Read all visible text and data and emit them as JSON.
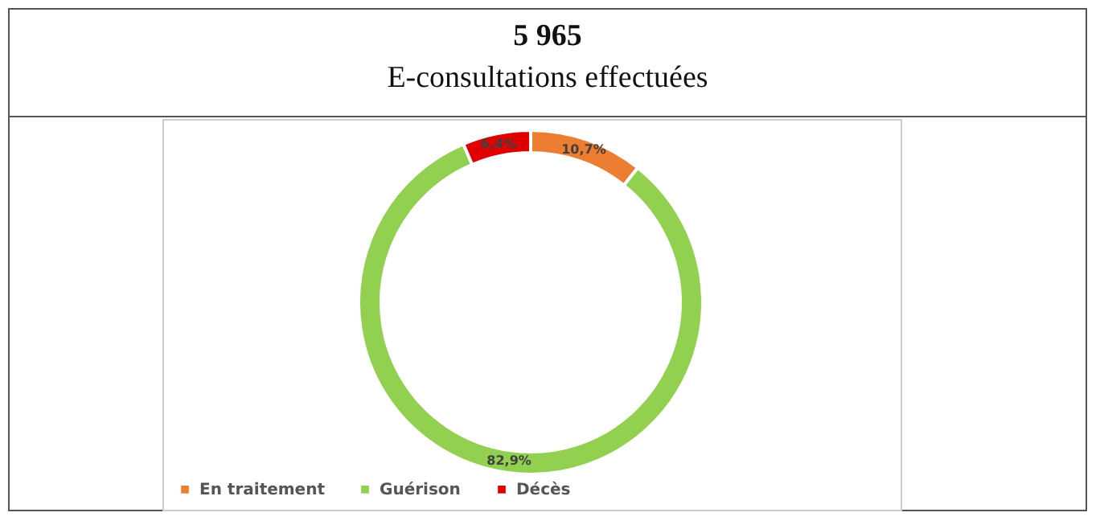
{
  "chart_data": {
    "type": "donut",
    "title": "5 965",
    "subtitle": "E-consultations effectuées",
    "categories": [
      "En traitement",
      "Guérison",
      "Décès"
    ],
    "values": [
      10.7,
      82.9,
      6.4
    ],
    "colors": [
      "#ed7d31",
      "#92d050",
      "#e00000"
    ],
    "value_labels": [
      "10,7%",
      "82,9%",
      "6,4%"
    ],
    "legend": "bottom"
  }
}
